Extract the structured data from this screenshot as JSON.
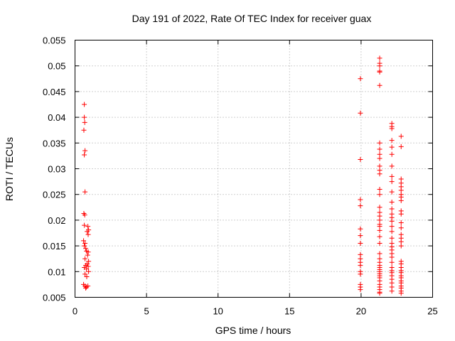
{
  "chart_data": {
    "type": "scatter",
    "title": "Day 191 of 2022, Rate Of TEC Index for receiver guax",
    "xlabel": "GPS time / hours",
    "ylabel": "ROTI / TECUs",
    "xlim": [
      0,
      25
    ],
    "ylim": [
      0.005,
      0.055
    ],
    "xticks": [
      0,
      5,
      10,
      15,
      20,
      25
    ],
    "xtick_labels": [
      "0",
      "5",
      "10",
      "15",
      "20",
      "25"
    ],
    "yticks": [
      0.005,
      0.01,
      0.015,
      0.02,
      0.025,
      0.03,
      0.035,
      0.04,
      0.045,
      0.05,
      0.055
    ],
    "ytick_labels": [
      "0.005",
      "0.01",
      "0.015",
      "0.02",
      "0.025",
      "0.03",
      "0.035",
      "0.04",
      "0.045",
      "0.05",
      "0.055"
    ],
    "grid": true,
    "marker": "+",
    "color": "#ff0000",
    "series": [
      {
        "points": [
          [
            0.65,
            0.0425
          ],
          [
            0.65,
            0.04
          ],
          [
            0.68,
            0.039
          ],
          [
            0.62,
            0.0375
          ],
          [
            0.7,
            0.0335
          ],
          [
            0.65,
            0.0327
          ],
          [
            0.7,
            0.0255
          ],
          [
            0.62,
            0.0213
          ],
          [
            0.68,
            0.021
          ],
          [
            0.65,
            0.019
          ],
          [
            0.9,
            0.0188
          ],
          [
            0.95,
            0.0181
          ],
          [
            0.85,
            0.0178
          ],
          [
            0.92,
            0.0172
          ],
          [
            0.6,
            0.016
          ],
          [
            0.7,
            0.0155
          ],
          [
            0.65,
            0.015
          ],
          [
            0.75,
            0.0145
          ],
          [
            0.8,
            0.014
          ],
          [
            0.92,
            0.0138
          ],
          [
            0.88,
            0.0132
          ],
          [
            0.7,
            0.0125
          ],
          [
            0.95,
            0.012
          ],
          [
            0.85,
            0.0115
          ],
          [
            0.75,
            0.0112
          ],
          [
            0.92,
            0.011
          ],
          [
            0.65,
            0.0108
          ],
          [
            0.8,
            0.0105
          ],
          [
            0.95,
            0.01
          ],
          [
            0.7,
            0.0095
          ],
          [
            0.82,
            0.009
          ],
          [
            0.6,
            0.0075
          ],
          [
            0.7,
            0.0072
          ],
          [
            0.8,
            0.007
          ],
          [
            0.9,
            0.0072
          ],
          [
            0.75,
            0.0068
          ],
          [
            19.95,
            0.0475
          ],
          [
            19.95,
            0.0408
          ],
          [
            19.95,
            0.0318
          ],
          [
            19.95,
            0.024
          ],
          [
            19.95,
            0.0228
          ],
          [
            19.95,
            0.0183
          ],
          [
            19.95,
            0.017
          ],
          [
            19.95,
            0.0155
          ],
          [
            19.95,
            0.0133
          ],
          [
            19.95,
            0.0125
          ],
          [
            19.95,
            0.0118
          ],
          [
            19.95,
            0.0112
          ],
          [
            19.95,
            0.01
          ],
          [
            19.95,
            0.0095
          ],
          [
            19.95,
            0.0075
          ],
          [
            19.95,
            0.007
          ],
          [
            19.95,
            0.0065
          ],
          [
            21.3,
            0.0515
          ],
          [
            21.3,
            0.0505
          ],
          [
            21.3,
            0.05
          ],
          [
            21.3,
            0.049
          ],
          [
            21.3,
            0.0488
          ],
          [
            21.3,
            0.0462
          ],
          [
            21.3,
            0.035
          ],
          [
            21.3,
            0.0338
          ],
          [
            21.3,
            0.0328
          ],
          [
            21.3,
            0.032
          ],
          [
            21.3,
            0.0305
          ],
          [
            21.3,
            0.0297
          ],
          [
            21.3,
            0.029
          ],
          [
            21.3,
            0.026
          ],
          [
            21.3,
            0.025
          ],
          [
            21.3,
            0.0225
          ],
          [
            21.3,
            0.0215
          ],
          [
            21.3,
            0.0208
          ],
          [
            21.3,
            0.02
          ],
          [
            21.3,
            0.0192
          ],
          [
            21.3,
            0.0188
          ],
          [
            21.3,
            0.018
          ],
          [
            21.3,
            0.0168
          ],
          [
            21.3,
            0.0155
          ],
          [
            21.3,
            0.0135
          ],
          [
            21.3,
            0.0125
          ],
          [
            21.3,
            0.0118
          ],
          [
            21.3,
            0.0112
          ],
          [
            21.3,
            0.0108
          ],
          [
            21.3,
            0.0104
          ],
          [
            21.3,
            0.01
          ],
          [
            21.3,
            0.0096
          ],
          [
            21.3,
            0.0092
          ],
          [
            21.3,
            0.0088
          ],
          [
            21.3,
            0.0082
          ],
          [
            21.3,
            0.0075
          ],
          [
            21.3,
            0.007
          ],
          [
            21.3,
            0.0065
          ],
          [
            21.3,
            0.006
          ],
          [
            21.3,
            0.0058
          ],
          [
            22.15,
            0.0388
          ],
          [
            22.15,
            0.0382
          ],
          [
            22.15,
            0.0378
          ],
          [
            22.15,
            0.0355
          ],
          [
            22.15,
            0.0342
          ],
          [
            22.15,
            0.0328
          ],
          [
            22.15,
            0.0305
          ],
          [
            22.15,
            0.0285
          ],
          [
            22.15,
            0.0275
          ],
          [
            22.15,
            0.0255
          ],
          [
            22.15,
            0.0235
          ],
          [
            22.15,
            0.0222
          ],
          [
            22.15,
            0.0212
          ],
          [
            22.15,
            0.0205
          ],
          [
            22.15,
            0.0198
          ],
          [
            22.15,
            0.0188
          ],
          [
            22.15,
            0.0178
          ],
          [
            22.15,
            0.0165
          ],
          [
            22.15,
            0.0155
          ],
          [
            22.15,
            0.0148
          ],
          [
            22.15,
            0.0142
          ],
          [
            22.15,
            0.0135
          ],
          [
            22.15,
            0.0128
          ],
          [
            22.15,
            0.0118
          ],
          [
            22.15,
            0.0108
          ],
          [
            22.15,
            0.0102
          ],
          [
            22.15,
            0.0098
          ],
          [
            22.15,
            0.0092
          ],
          [
            22.15,
            0.0085
          ],
          [
            22.15,
            0.0078
          ],
          [
            22.15,
            0.007
          ],
          [
            22.15,
            0.0062
          ],
          [
            22.8,
            0.0363
          ],
          [
            22.8,
            0.0343
          ],
          [
            22.8,
            0.028
          ],
          [
            22.8,
            0.0272
          ],
          [
            22.8,
            0.0265
          ],
          [
            22.8,
            0.0258
          ],
          [
            22.8,
            0.025
          ],
          [
            22.8,
            0.0245
          ],
          [
            22.8,
            0.0238
          ],
          [
            22.8,
            0.0218
          ],
          [
            22.8,
            0.0212
          ],
          [
            22.8,
            0.0195
          ],
          [
            22.8,
            0.0185
          ],
          [
            22.8,
            0.0172
          ],
          [
            22.8,
            0.0165
          ],
          [
            22.8,
            0.0158
          ],
          [
            22.8,
            0.015
          ],
          [
            22.8,
            0.012
          ],
          [
            22.8,
            0.0115
          ],
          [
            22.8,
            0.0108
          ],
          [
            22.8,
            0.0102
          ],
          [
            22.8,
            0.0098
          ],
          [
            22.8,
            0.0092
          ],
          [
            22.8,
            0.0088
          ],
          [
            22.8,
            0.0082
          ],
          [
            22.8,
            0.0078
          ],
          [
            22.8,
            0.0072
          ],
          [
            22.8,
            0.0068
          ],
          [
            22.8,
            0.0062
          ],
          [
            22.8,
            0.0058
          ]
        ]
      }
    ]
  }
}
